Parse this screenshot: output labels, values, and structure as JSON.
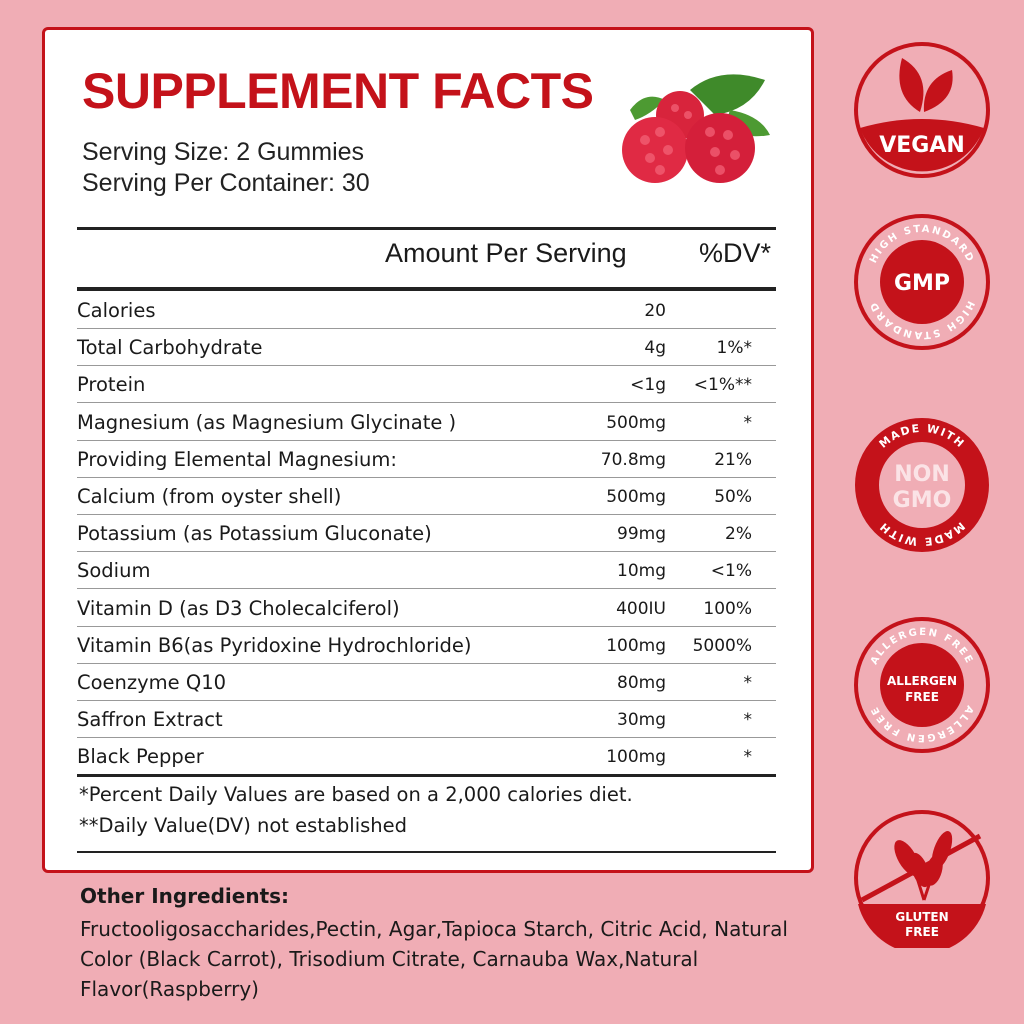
{
  "title": "SUPPLEMENT FACTS",
  "serving_size": "Serving Size: 2 Gummies",
  "servings_per_container": "Serving Per Container: 30",
  "header": {
    "amount": "Amount Per Serving",
    "dv": "%DV*"
  },
  "rows": [
    {
      "name": "Calories",
      "amount": "20",
      "dv": ""
    },
    {
      "name": "Total Carbohydrate",
      "amount": "4g",
      "dv": "1%*"
    },
    {
      "name": "Protein",
      "amount": "<1g",
      "dv": "<1%**"
    },
    {
      "name": "Magnesium (as  Magnesium Glycinate )",
      "amount": "500mg",
      "dv": "*"
    },
    {
      "name": "Providing Elemental Magnesium:",
      "amount": "70.8mg",
      "dv": "21%"
    },
    {
      "name": "Calcium (from oyster shell)",
      "amount": "500mg",
      "dv": "50%"
    },
    {
      "name": "Potassium (as Potassium Gluconate)",
      "amount": "99mg",
      "dv": "2%"
    },
    {
      "name": "Sodium",
      "amount": "10mg",
      "dv": "<1%"
    },
    {
      "name": "Vitamin D (as D3 Cholecalciferol)",
      "amount": "400IU",
      "dv": "100%"
    },
    {
      "name": "Vitamin B6(as Pyridoxine Hydrochloride)",
      "amount": "100mg",
      "dv": "5000%"
    },
    {
      "name": "Coenzyme Q10",
      "amount": "80mg",
      "dv": "*"
    },
    {
      "name": "Saffron Extract",
      "amount": "30mg",
      "dv": "*"
    },
    {
      "name": "Black Pepper",
      "amount": "100mg",
      "dv": "*"
    }
  ],
  "footnotes": [
    "*Percent Daily Values are based on a 2,000 calories diet.",
    "**Daily Value(DV) not established"
  ],
  "other_ingredients": {
    "heading": "Other Ingredients:",
    "text": "Fructooligosaccharides,Pectin, Agar,Tapioca Starch, Citric Acid, Natural Color (Black Carrot), Trisodium Citrate, Carnauba Wax,Natural Flavor(Raspberry)"
  },
  "badges": {
    "vegan": "VEGAN",
    "gmp": {
      "center": "GMP",
      "ring": "HIGH STANDARD"
    },
    "nongmo": {
      "line1": "NON",
      "line2": "GMO",
      "ring": "MADE WITH"
    },
    "allergen": {
      "line1": "ALLERGEN",
      "line2": "FREE",
      "ring": "ALLERGEN FREE"
    },
    "gluten": {
      "line1": "GLUTEN",
      "line2": "FREE"
    }
  },
  "colors": {
    "accent": "#c4121a",
    "background": "#f0adb5",
    "panel": "#ffffff"
  }
}
